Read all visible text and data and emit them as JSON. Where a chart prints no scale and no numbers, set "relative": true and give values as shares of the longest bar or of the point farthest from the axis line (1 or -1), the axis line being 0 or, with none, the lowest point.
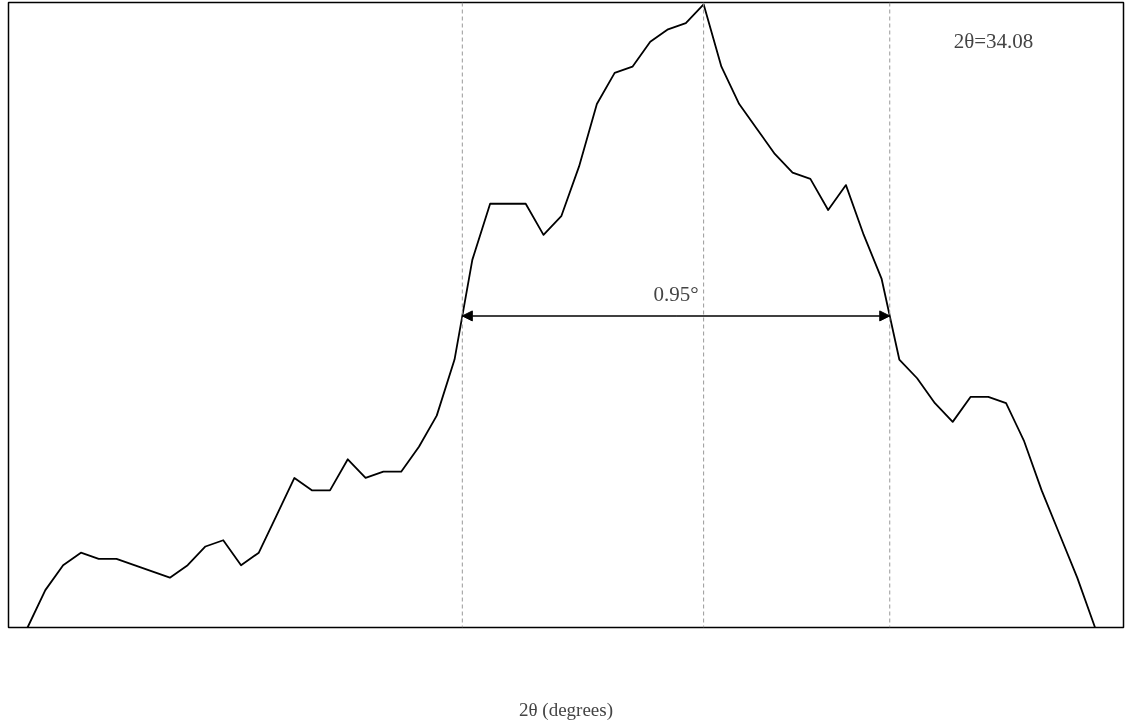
{
  "chart_data": {
    "type": "line",
    "relative": true,
    "xlabel": "2θ (degrees)",
    "categories": [
      null,
      null,
      null,
      null,
      null,
      null,
      null,
      null,
      null,
      null,
      null,
      null,
      null,
      null,
      null,
      null,
      null,
      null,
      null,
      null,
      null,
      null,
      null,
      null,
      null,
      null,
      null,
      null,
      null,
      null,
      null,
      null,
      null,
      null,
      null,
      null,
      null,
      null,
      null,
      null,
      null,
      null,
      null,
      null,
      null,
      null,
      null,
      null,
      null,
      null,
      null,
      null,
      null,
      null,
      null,
      null,
      null,
      null,
      null,
      null,
      null
    ],
    "series": [
      {
        "color": "#000000",
        "values": [
          0,
          0.06,
          0.1,
          0.12,
          0.11,
          0.11,
          0.1,
          0.09,
          0.08,
          0.1,
          0.13,
          0.14,
          0.1,
          0.12,
          0.18,
          0.24,
          0.22,
          0.22,
          0.27,
          0.24,
          0.25,
          0.25,
          0.29,
          0.34,
          0.43,
          0.59,
          0.68,
          0.68,
          0.68,
          0.63,
          0.66,
          0.74,
          0.84,
          0.89,
          0.9,
          0.94,
          0.96,
          0.97,
          1.0,
          0.9,
          0.84,
          0.8,
          0.76,
          0.73,
          0.72,
          0.67,
          0.71,
          0.63,
          0.56,
          0.43,
          0.4,
          0.36,
          0.33,
          0.37,
          0.37,
          0.36,
          0.3,
          0.22,
          0.15,
          0.08,
          0
        ]
      }
    ],
    "annotations": [
      "2θ=34.08",
      "0.95°"
    ],
    "grid": false,
    "marker": "none",
    "line_style": "solid",
    "tick_labels": false
  }
}
